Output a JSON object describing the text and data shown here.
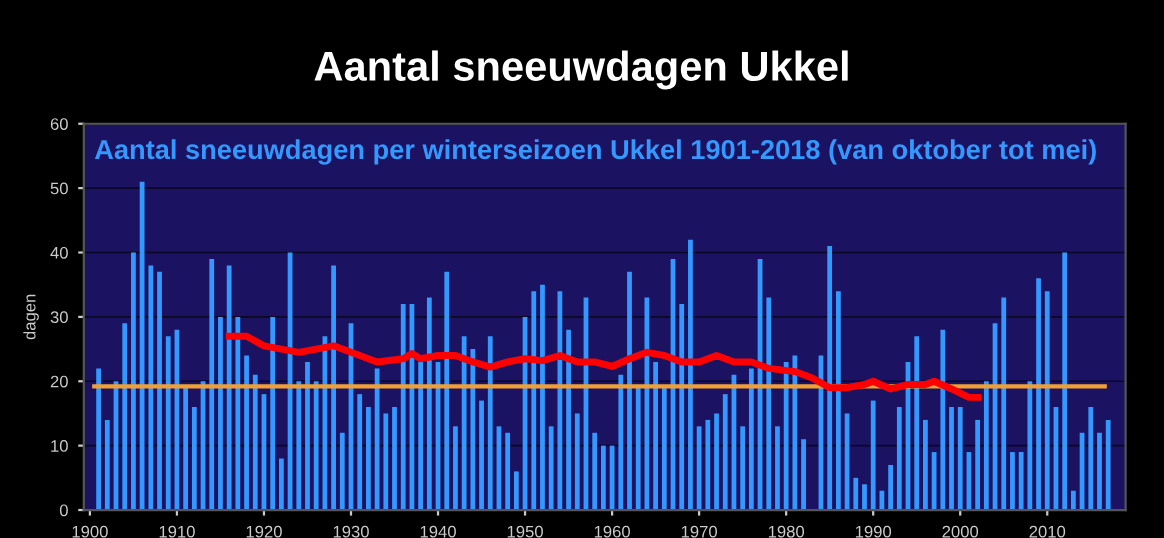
{
  "chart_data": {
    "type": "bar",
    "title": "Aantal sneeuwdagen Ukkel",
    "subtitle": "Aantal sneeuwdagen per winterseizoen Ukkel 1901-2018 (van oktober tot mei)",
    "ylabel": "dagen",
    "xlim": [
      1899.3,
      2019
    ],
    "ylim": [
      0,
      60
    ],
    "xticks": [
      1900,
      1910,
      1920,
      1930,
      1940,
      1950,
      1960,
      1970,
      1980,
      1990,
      2000,
      2010
    ],
    "yticks": [
      0,
      10,
      20,
      30,
      40,
      50,
      60
    ],
    "grid": "y",
    "series": [
      {
        "color": "#3399ff",
        "x": [
          1901,
          1902,
          1903,
          1904,
          1905,
          1906,
          1907,
          1908,
          1909,
          1910,
          1911,
          1912,
          1913,
          1914,
          1915,
          1916,
          1917,
          1918,
          1919,
          1920,
          1921,
          1922,
          1923,
          1924,
          1925,
          1926,
          1927,
          1928,
          1929,
          1930,
          1931,
          1932,
          1933,
          1934,
          1935,
          1936,
          1937,
          1938,
          1939,
          1940,
          1941,
          1942,
          1943,
          1944,
          1945,
          1946,
          1947,
          1948,
          1949,
          1950,
          1951,
          1952,
          1953,
          1954,
          1955,
          1956,
          1957,
          1958,
          1959,
          1960,
          1961,
          1962,
          1963,
          1964,
          1965,
          1966,
          1967,
          1968,
          1969,
          1970,
          1971,
          1972,
          1973,
          1974,
          1975,
          1976,
          1977,
          1978,
          1979,
          1980,
          1981,
          1982,
          1983,
          1984,
          1985,
          1986,
          1987,
          1988,
          1989,
          1990,
          1991,
          1992,
          1993,
          1994,
          1995,
          1996,
          1997,
          1998,
          1999,
          2000,
          2001,
          2002,
          2003,
          2004,
          2005,
          2006,
          2007,
          2008,
          2009,
          2010,
          2011,
          2012,
          2013,
          2014,
          2015,
          2016,
          2017
        ],
        "values": [
          22,
          14,
          20,
          29,
          40,
          51,
          38,
          37,
          27,
          28,
          19,
          16,
          20,
          39,
          30,
          38,
          30,
          24,
          21,
          18,
          30,
          8,
          40,
          20,
          23,
          20,
          27,
          38,
          12,
          29,
          18,
          16,
          22,
          15,
          16,
          32,
          32,
          23,
          33,
          23,
          37,
          13,
          27,
          25,
          17,
          27,
          13,
          12,
          6,
          30,
          34,
          35,
          13,
          34,
          28,
          15,
          33,
          12,
          10,
          10,
          21,
          37,
          19,
          33,
          23,
          19,
          39,
          32,
          42,
          13,
          14,
          15,
          18,
          21,
          13,
          22,
          39,
          33,
          13,
          23,
          24,
          11,
          null,
          24,
          41,
          34,
          15,
          5,
          4,
          17,
          3,
          7,
          16,
          23,
          27,
          14,
          9,
          28,
          16,
          16,
          9,
          14,
          20,
          29,
          33,
          9,
          9,
          20,
          36,
          34,
          16,
          40,
          3,
          12,
          16,
          12,
          14
        ]
      },
      {
        "type": "line",
        "color": "#ff0000",
        "x": [
          1916,
          1918,
          1920,
          1922,
          1924,
          1926,
          1928,
          1930,
          1933,
          1936,
          1937,
          1938,
          1940,
          1942,
          1944,
          1946,
          1948,
          1950,
          1952,
          1954,
          1956,
          1958,
          1960,
          1962,
          1964,
          1966,
          1968,
          1970,
          1972,
          1974,
          1976,
          1978,
          1981,
          1983,
          1985,
          1987,
          1989,
          1990,
          1992,
          1994,
          1996,
          1997,
          1999,
          2001,
          2002
        ],
        "values": [
          27,
          27,
          25.5,
          25,
          24.5,
          25,
          25.5,
          24.5,
          23,
          23.5,
          24.3,
          23.5,
          24,
          24,
          23,
          22.2,
          23,
          23.5,
          23.2,
          24,
          23,
          23,
          22.3,
          23.5,
          24.5,
          24,
          23,
          23,
          24,
          23,
          23,
          22,
          21.5,
          20.5,
          19,
          19,
          19.5,
          20,
          18.8,
          19.5,
          19.5,
          20,
          18.8,
          17.5,
          17.5
        ]
      }
    ],
    "ref_lines": [
      {
        "axis": "y",
        "value": 19.2,
        "color": "#f0a030"
      }
    ],
    "legend": false
  }
}
